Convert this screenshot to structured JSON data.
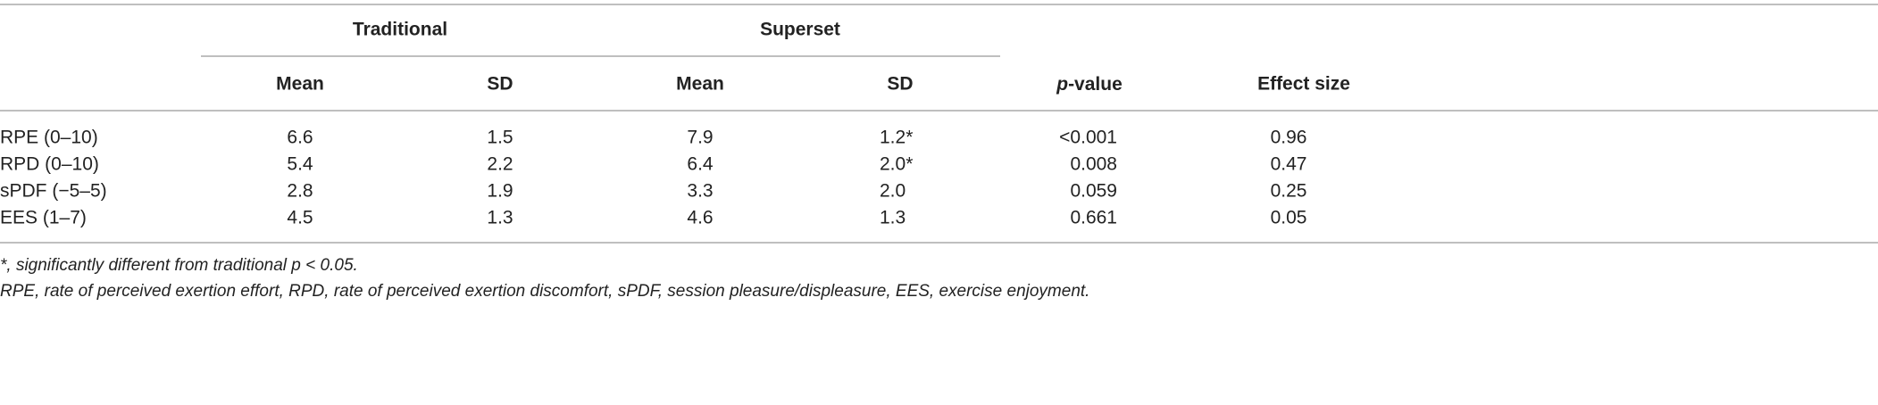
{
  "table": {
    "group_headers": [
      "Traditional",
      "Superset"
    ],
    "column_headers": [
      "Mean",
      "SD",
      "Mean",
      "SD",
      {
        "italic": "p",
        "text": "-value"
      },
      "Effect size"
    ],
    "rows": [
      [
        "RPE (0–10)",
        "6.6",
        "1.5",
        "7.9",
        "1.2*",
        "<0.001",
        "0.96"
      ],
      [
        "RPD (0–10)",
        "5.4",
        "2.2",
        "6.4",
        "2.0*",
        "0.008",
        "0.47"
      ],
      [
        "sPDF (−5–5)",
        "2.8",
        "1.9",
        "3.3",
        "2.0",
        "0.059",
        "0.25"
      ],
      [
        "EES (1–7)",
        "4.5",
        "1.3",
        "4.6",
        "1.3",
        "0.661",
        "0.05"
      ]
    ]
  },
  "footnotes": [
    "*, significantly different from traditional p < 0.05.",
    "RPE, rate of perceived exertion effort, RPD, rate of perceived exertion discomfort, sPDF, session pleasure/displeasure, EES, exercise enjoyment."
  ]
}
